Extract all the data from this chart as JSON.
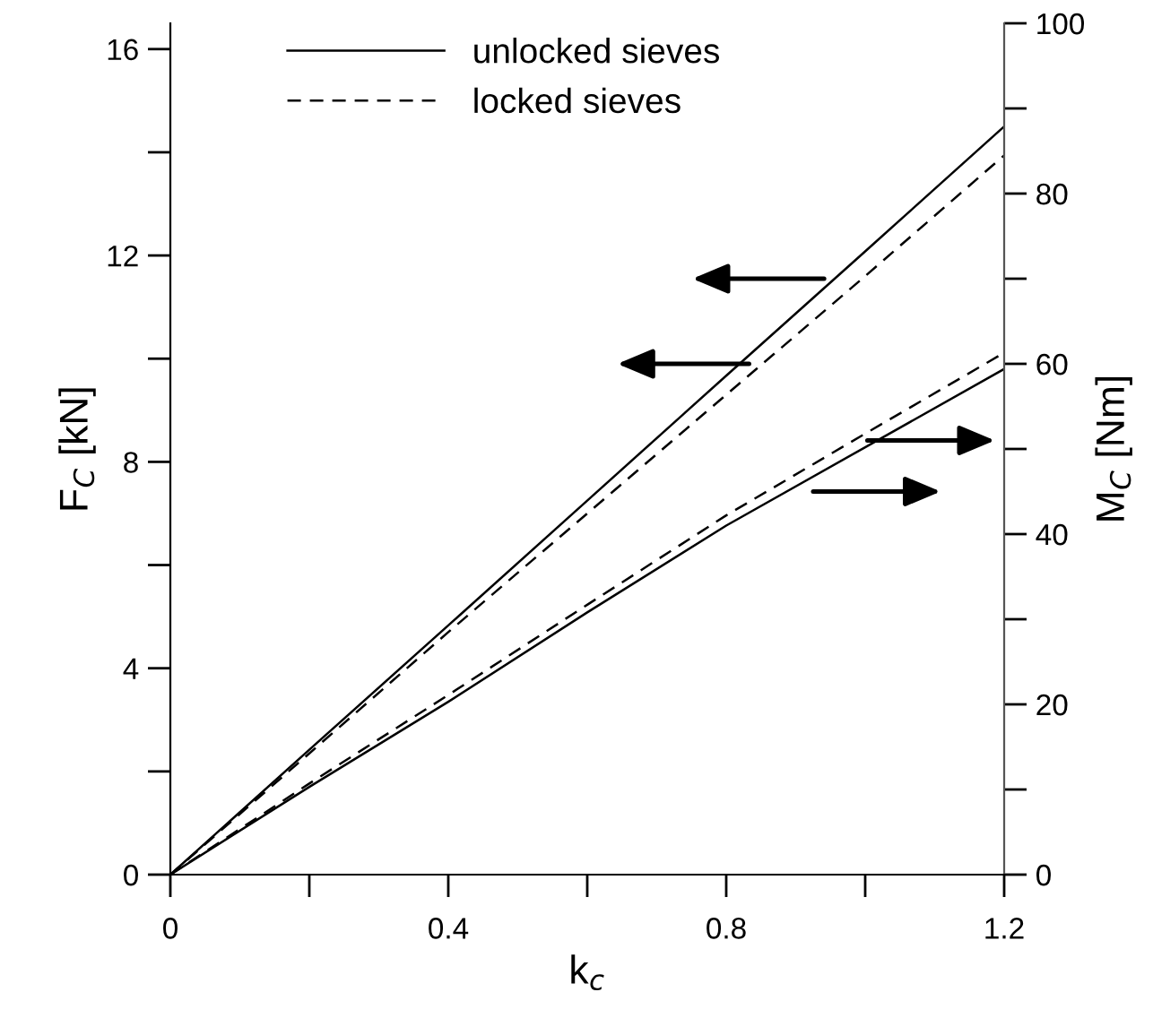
{
  "chart_data": {
    "type": "line",
    "xlabel": "k$_{c}$",
    "ylabel": "F$_{C}$ [kN]",
    "y2label": "M$_{C}$ [Nm]",
    "x": [
      0,
      0.2,
      0.4,
      0.6,
      0.8,
      1.0,
      1.2
    ],
    "series": [
      {
        "name": "unlocked sieves",
        "color": "#000000",
        "line_style": "solid",
        "values": [
          0,
          2.42,
          4.83,
          7.25,
          9.67,
          12.08,
          14.5
        ]
      },
      {
        "name": "locked sieves",
        "color": "#000000",
        "line_style": "dashed",
        "values": [
          0,
          2.35,
          4.7,
          7.0,
          9.3,
          11.6,
          13.94
        ]
      },
      {
        "color": "#000000",
        "line_style": "solid",
        "axis": "y2",
        "values": [
          0,
          10.3,
          20.3,
          30.8,
          41.0,
          50.2,
          59.4
        ]
      },
      {
        "color": "#000000",
        "line_style": "dashed",
        "axis": "y2",
        "values": [
          0,
          10.7,
          21.1,
          31.7,
          42.2,
          51.8,
          61.3
        ]
      }
    ],
    "xlim": [
      0,
      1.2
    ],
    "xticks": [
      0,
      {
        "value": 0.2,
        "label": null
      },
      0.4,
      {
        "value": 0.6,
        "label": null
      },
      0.8,
      {
        "value": 1.0,
        "label": null
      },
      1.2
    ],
    "ylim": [
      0,
      16.5
    ],
    "yticks": [
      0,
      {
        "value": 2,
        "label": null
      },
      4,
      {
        "value": 6,
        "label": null
      },
      8,
      {
        "value": 10,
        "label": null
      },
      12,
      {
        "value": 14,
        "label": null
      },
      16
    ],
    "y2lim": [
      0,
      100
    ],
    "y2ticks": [
      0,
      {
        "value": 10,
        "label": null
      },
      20,
      {
        "value": 30,
        "label": null
      },
      40,
      {
        "value": 50,
        "label": null
      },
      60,
      {
        "value": 70,
        "label": null
      },
      80,
      {
        "value": 90,
        "label": null
      },
      100
    ],
    "legend": "top",
    "grid": false,
    "marker": "none"
  }
}
